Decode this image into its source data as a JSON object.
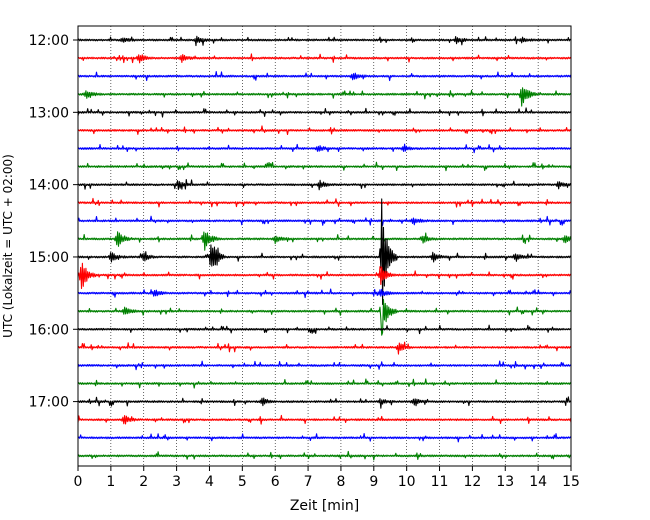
{
  "chart_data": {
    "type": "line",
    "chart_kind": "helicorder (seismogram drum plot)",
    "xlabel": "Zeit  [min]",
    "ylabel": "UTC (Lokalzeit = UTC + 02:00)",
    "xlim": [
      0,
      15
    ],
    "x_ticks": [
      "0",
      "1",
      "2",
      "3",
      "4",
      "5",
      "6",
      "7",
      "8",
      "9",
      "10",
      "11",
      "12",
      "13",
      "14",
      "15"
    ],
    "y_tick_labels": [
      "12:00",
      "13:00",
      "14:00",
      "15:00",
      "16:00",
      "17:00"
    ],
    "y_tick_rows": [
      0,
      4,
      8,
      12,
      16,
      20
    ],
    "trace_start_minutes": 720,
    "trace_interval_min": 15,
    "trace_count": 24,
    "trace_colors": [
      "#000000",
      "#ff0000",
      "#0000ff",
      "#008000"
    ],
    "grid": "vertical dotted lines at each minute",
    "legend": "none",
    "events": [
      {
        "row": 0,
        "minute": 1.35,
        "amplitude": 3,
        "polarity": "both"
      },
      {
        "row": 0,
        "minute": 3.6,
        "amplitude": 4,
        "polarity": "both"
      },
      {
        "row": 0,
        "minute": 11.5,
        "amplitude": 4,
        "polarity": "both"
      },
      {
        "row": 0,
        "minute": 13.5,
        "amplitude": 3,
        "polarity": "both"
      },
      {
        "row": 1,
        "minute": 1.85,
        "amplitude": 5,
        "polarity": "both"
      },
      {
        "row": 1,
        "minute": 3.15,
        "amplitude": 4,
        "polarity": "both"
      },
      {
        "row": 2,
        "minute": 8.35,
        "amplitude": 4,
        "polarity": "both"
      },
      {
        "row": 3,
        "minute": 0.25,
        "amplitude": 4,
        "polarity": "both"
      },
      {
        "row": 3,
        "minute": 13.5,
        "amplitude": 14,
        "polarity": "both"
      },
      {
        "row": 6,
        "minute": 7.3,
        "amplitude": 3,
        "polarity": "both"
      },
      {
        "row": 6,
        "minute": 9.9,
        "amplitude": 3,
        "polarity": "both"
      },
      {
        "row": 8,
        "minute": 3.05,
        "amplitude": 4,
        "polarity": "both"
      },
      {
        "row": 8,
        "minute": 7.35,
        "amplitude": 4,
        "polarity": "both"
      },
      {
        "row": 8,
        "minute": 14.6,
        "amplitude": 4,
        "polarity": "both"
      },
      {
        "row": 10,
        "minute": 10.2,
        "amplitude": 4,
        "polarity": "both"
      },
      {
        "row": 11,
        "minute": 1.2,
        "amplitude": 10,
        "polarity": "both"
      },
      {
        "row": 11,
        "minute": 3.85,
        "amplitude": 12,
        "polarity": "both"
      },
      {
        "row": 11,
        "minute": 6.0,
        "amplitude": 4,
        "polarity": "both"
      },
      {
        "row": 11,
        "minute": 10.5,
        "amplitude": 4,
        "polarity": "both"
      },
      {
        "row": 11,
        "minute": 14.8,
        "amplitude": 5,
        "polarity": "both"
      },
      {
        "row": 12,
        "minute": 1.0,
        "amplitude": 5,
        "polarity": "both"
      },
      {
        "row": 12,
        "minute": 2.0,
        "amplitude": 4,
        "polarity": "both"
      },
      {
        "row": 12,
        "minute": 4.05,
        "amplitude": 20,
        "polarity": "both"
      },
      {
        "row": 12,
        "minute": 9.25,
        "amplitude": 58,
        "polarity": "up"
      },
      {
        "row": 12,
        "minute": 10.8,
        "amplitude": 6,
        "polarity": "both"
      },
      {
        "row": 12,
        "minute": 13.3,
        "amplitude": 5,
        "polarity": "both"
      },
      {
        "row": 13,
        "minute": 0.1,
        "amplitude": 18,
        "polarity": "both"
      },
      {
        "row": 13,
        "minute": 9.2,
        "amplitude": 10,
        "polarity": "both"
      },
      {
        "row": 14,
        "minute": 2.3,
        "amplitude": 4,
        "polarity": "both"
      },
      {
        "row": 14,
        "minute": 9.2,
        "amplitude": 4,
        "polarity": "both"
      },
      {
        "row": 15,
        "minute": 1.4,
        "amplitude": 4,
        "polarity": "both"
      },
      {
        "row": 15,
        "minute": 9.25,
        "amplitude": 24,
        "polarity": "down"
      },
      {
        "row": 17,
        "minute": 9.75,
        "amplitude": 6,
        "polarity": "both"
      },
      {
        "row": 20,
        "minute": 5.6,
        "amplitude": 4,
        "polarity": "both"
      },
      {
        "row": 20,
        "minute": 9.2,
        "amplitude": 3,
        "polarity": "both"
      },
      {
        "row": 20,
        "minute": 10.2,
        "amplitude": 4,
        "polarity": "both"
      },
      {
        "row": 21,
        "minute": 1.4,
        "amplitude": 5,
        "polarity": "both"
      }
    ]
  }
}
